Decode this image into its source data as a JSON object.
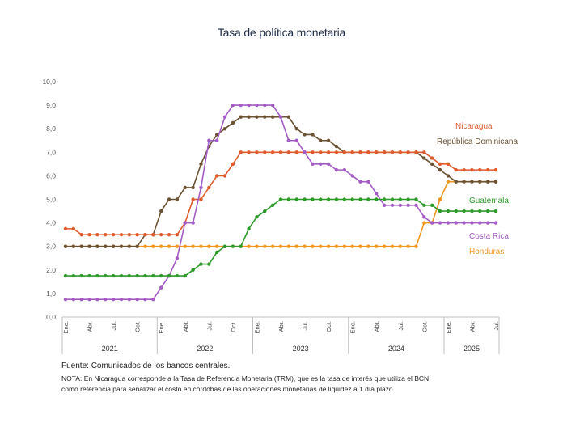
{
  "chart_data": {
    "type": "line",
    "title": "Tasa de política monetaria",
    "ylim": [
      0,
      10
    ],
    "y_ticks": [
      "0,0",
      "1,0",
      "2,0",
      "3,0",
      "4,0",
      "5,0",
      "6,0",
      "7,0",
      "8,0",
      "9,0",
      "10,0"
    ],
    "x": [
      "2021-01",
      "2021-02",
      "2021-03",
      "2021-04",
      "2021-05",
      "2021-06",
      "2021-07",
      "2021-08",
      "2021-09",
      "2021-10",
      "2021-11",
      "2021-12",
      "2022-01",
      "2022-02",
      "2022-03",
      "2022-04",
      "2022-05",
      "2022-06",
      "2022-07",
      "2022-08",
      "2022-09",
      "2022-10",
      "2022-11",
      "2022-12",
      "2023-01",
      "2023-02",
      "2023-03",
      "2023-04",
      "2023-05",
      "2023-06",
      "2023-07",
      "2023-08",
      "2023-09",
      "2023-10",
      "2023-11",
      "2023-12",
      "2024-01",
      "2024-02",
      "2024-03",
      "2024-04",
      "2024-05",
      "2024-06",
      "2024-07",
      "2024-08",
      "2024-09",
      "2024-10",
      "2024-11",
      "2024-12",
      "2025-01",
      "2025-02",
      "2025-03",
      "2025-04",
      "2025-05",
      "2025-06",
      "2025-07"
    ],
    "month_labels": [
      "Ene.",
      "Abr.",
      "Jul.",
      "Oct."
    ],
    "year_labels": [
      "2021",
      "2022",
      "2023",
      "2024",
      "2025"
    ],
    "series": [
      {
        "name": "Nicaragua",
        "color": "#e05a2b",
        "values": [
          3.75,
          3.75,
          3.5,
          3.5,
          3.5,
          3.5,
          3.5,
          3.5,
          3.5,
          3.5,
          3.5,
          3.5,
          3.5,
          3.5,
          3.5,
          4.0,
          5.0,
          5.0,
          5.5,
          6.0,
          6.0,
          6.5,
          7.0,
          7.0,
          7.0,
          7.0,
          7.0,
          7.0,
          7.0,
          7.0,
          7.0,
          7.0,
          7.0,
          7.0,
          7.0,
          7.0,
          7.0,
          7.0,
          7.0,
          7.0,
          7.0,
          7.0,
          7.0,
          7.0,
          7.0,
          7.0,
          6.75,
          6.5,
          6.5,
          6.25,
          6.25,
          6.25,
          6.25,
          6.25,
          6.25
        ]
      },
      {
        "name": "República Dominicana",
        "color": "#6b5233",
        "values": [
          3.0,
          3.0,
          3.0,
          3.0,
          3.0,
          3.0,
          3.0,
          3.0,
          3.0,
          3.0,
          3.5,
          3.5,
          4.5,
          5.0,
          5.0,
          5.5,
          5.5,
          6.5,
          7.25,
          7.75,
          8.0,
          8.25,
          8.5,
          8.5,
          8.5,
          8.5,
          8.5,
          8.5,
          8.5,
          8.0,
          7.75,
          7.75,
          7.5,
          7.5,
          7.25,
          7.0,
          7.0,
          7.0,
          7.0,
          7.0,
          7.0,
          7.0,
          7.0,
          7.0,
          7.0,
          6.75,
          6.5,
          6.25,
          6.0,
          5.75,
          5.75,
          5.75,
          5.75,
          5.75,
          5.75
        ]
      },
      {
        "name": "Guatemala",
        "color": "#2e9a2a",
        "values": [
          1.75,
          1.75,
          1.75,
          1.75,
          1.75,
          1.75,
          1.75,
          1.75,
          1.75,
          1.75,
          1.75,
          1.75,
          1.75,
          1.75,
          1.75,
          1.75,
          2.0,
          2.25,
          2.25,
          2.75,
          3.0,
          3.0,
          3.0,
          3.75,
          4.25,
          4.5,
          4.75,
          5.0,
          5.0,
          5.0,
          5.0,
          5.0,
          5.0,
          5.0,
          5.0,
          5.0,
          5.0,
          5.0,
          5.0,
          5.0,
          5.0,
          5.0,
          5.0,
          5.0,
          5.0,
          4.75,
          4.75,
          4.5,
          4.5,
          4.5,
          4.5,
          4.5,
          4.5,
          4.5,
          4.5
        ]
      },
      {
        "name": "Costa Rica",
        "color": "#a45cc5",
        "values": [
          0.75,
          0.75,
          0.75,
          0.75,
          0.75,
          0.75,
          0.75,
          0.75,
          0.75,
          0.75,
          0.75,
          0.75,
          1.25,
          1.75,
          2.5,
          4.0,
          4.0,
          5.5,
          7.5,
          7.5,
          8.5,
          9.0,
          9.0,
          9.0,
          9.0,
          9.0,
          9.0,
          8.5,
          7.5,
          7.5,
          7.0,
          6.5,
          6.5,
          6.5,
          6.25,
          6.25,
          6.0,
          5.75,
          5.75,
          5.25,
          4.75,
          4.75,
          4.75,
          4.75,
          4.75,
          4.25,
          4.0,
          4.0,
          4.0,
          4.0,
          4.0,
          4.0,
          4.0,
          4.0,
          4.0
        ]
      },
      {
        "name": "Honduras",
        "color": "#f0961e",
        "values": [
          3.0,
          3.0,
          3.0,
          3.0,
          3.0,
          3.0,
          3.0,
          3.0,
          3.0,
          3.0,
          3.0,
          3.0,
          3.0,
          3.0,
          3.0,
          3.0,
          3.0,
          3.0,
          3.0,
          3.0,
          3.0,
          3.0,
          3.0,
          3.0,
          3.0,
          3.0,
          3.0,
          3.0,
          3.0,
          3.0,
          3.0,
          3.0,
          3.0,
          3.0,
          3.0,
          3.0,
          3.0,
          3.0,
          3.0,
          3.0,
          3.0,
          3.0,
          3.0,
          3.0,
          3.0,
          4.0,
          4.0,
          5.0,
          5.75,
          5.75,
          5.75,
          5.75,
          5.75,
          5.75,
          5.75
        ]
      }
    ]
  },
  "footer": {
    "source": "Fuente: Comunicados de los bancos centrales.",
    "note": "NOTA: En Nicaragua corresponde a la Tasa de Referencia Monetaria (TRM), que es la tasa de interés que utiliza el BCN como referencia para señalizar el costo en córdobas de las operaciones monetarias de liquidez a 1 día plazo."
  }
}
